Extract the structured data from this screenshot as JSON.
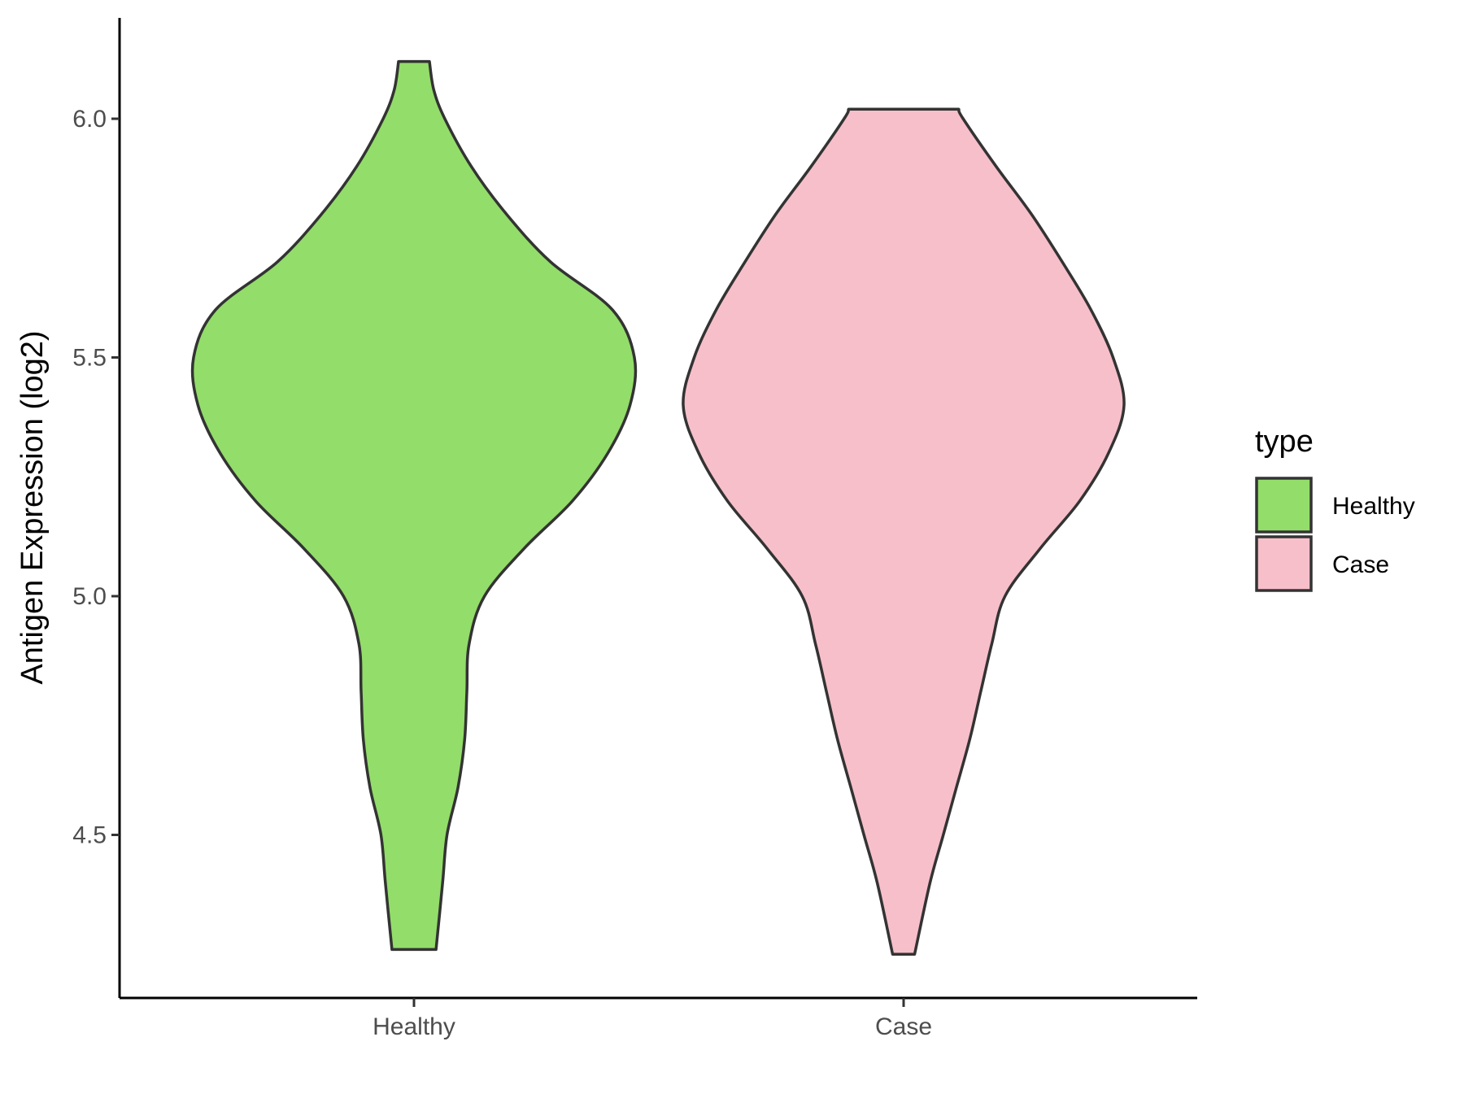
{
  "chart_data": {
    "type": "violin",
    "title": "",
    "xlabel": "",
    "ylabel": "Antigen Expression (log2)",
    "categories": [
      "Healthy",
      "Case"
    ],
    "ylim": [
      4.15,
      6.22
    ],
    "yticks": [
      4.5,
      5.0,
      5.5,
      6.0
    ],
    "ytick_labels": [
      "4.5",
      "5.0",
      "5.5",
      "6.0"
    ],
    "grid": false,
    "legend": {
      "title": "type",
      "placement": "right",
      "entries": [
        "Healthy",
        "Case"
      ]
    },
    "series": [
      {
        "name": "Healthy",
        "color": "#93DD6A",
        "y_min": 4.26,
        "y_max": 6.12,
        "density_profile": [
          [
            4.26,
            0.1
          ],
          [
            4.4,
            0.13
          ],
          [
            4.5,
            0.15
          ],
          [
            4.6,
            0.2
          ],
          [
            4.7,
            0.23
          ],
          [
            4.8,
            0.24
          ],
          [
            4.9,
            0.25
          ],
          [
            5.0,
            0.32
          ],
          [
            5.1,
            0.5
          ],
          [
            5.2,
            0.72
          ],
          [
            5.3,
            0.88
          ],
          [
            5.4,
            0.98
          ],
          [
            5.5,
            1.0
          ],
          [
            5.6,
            0.9
          ],
          [
            5.7,
            0.62
          ],
          [
            5.8,
            0.42
          ],
          [
            5.9,
            0.26
          ],
          [
            6.0,
            0.14
          ],
          [
            6.06,
            0.09
          ],
          [
            6.12,
            0.07
          ]
        ]
      },
      {
        "name": "Case",
        "color": "#F7BFCA",
        "y_min": 4.25,
        "y_max": 6.02,
        "density_profile": [
          [
            4.25,
            0.05
          ],
          [
            4.4,
            0.12
          ],
          [
            4.5,
            0.18
          ],
          [
            4.6,
            0.24
          ],
          [
            4.7,
            0.3
          ],
          [
            4.8,
            0.35
          ],
          [
            4.9,
            0.4
          ],
          [
            5.0,
            0.46
          ],
          [
            5.1,
            0.62
          ],
          [
            5.2,
            0.8
          ],
          [
            5.3,
            0.93
          ],
          [
            5.4,
            1.0
          ],
          [
            5.5,
            0.95
          ],
          [
            5.6,
            0.85
          ],
          [
            5.7,
            0.72
          ],
          [
            5.8,
            0.58
          ],
          [
            5.9,
            0.42
          ],
          [
            6.0,
            0.27
          ],
          [
            6.02,
            0.25
          ]
        ]
      }
    ]
  }
}
